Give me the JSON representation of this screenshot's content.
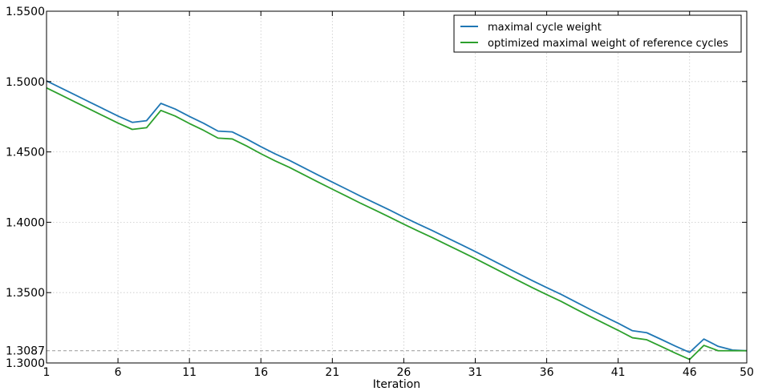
{
  "chart_data": {
    "type": "line",
    "title": "",
    "xlabel": "Iteration",
    "ylabel": "",
    "xlim": [
      1,
      50
    ],
    "ylim": [
      1.3,
      1.55
    ],
    "x_ticks": [
      1,
      6,
      11,
      16,
      21,
      26,
      31,
      36,
      41,
      46,
      50
    ],
    "y_ticks": [
      1.3,
      1.35,
      1.4,
      1.45,
      1.5,
      1.55
    ],
    "y_tick_labels": [
      "1.3000",
      "1.3500",
      "1.4000",
      "1.4500",
      "1.5000",
      "1.5500"
    ],
    "reference_line": {
      "value": 1.3087,
      "label": "1.3087",
      "style": "dashed",
      "color": "#999999"
    },
    "grid": true,
    "legend": "top-right",
    "x": [
      1,
      2,
      3,
      4,
      5,
      6,
      7,
      8,
      9,
      10,
      11,
      12,
      13,
      14,
      15,
      16,
      17,
      18,
      19,
      20,
      21,
      22,
      23,
      24,
      25,
      26,
      27,
      28,
      29,
      30,
      31,
      32,
      33,
      34,
      35,
      36,
      37,
      38,
      39,
      40,
      41,
      42,
      43,
      44,
      45,
      46,
      47,
      48,
      49,
      50
    ],
    "series": [
      {
        "name": "maximal cycle weight",
        "color": "#1f77b4",
        "values": [
          1.5005,
          1.4955,
          1.4905,
          1.4855,
          1.4805,
          1.4755,
          1.471,
          1.4722,
          1.4845,
          1.4805,
          1.4752,
          1.4703,
          1.4648,
          1.4642,
          1.4592,
          1.4537,
          1.4486,
          1.444,
          1.4388,
          1.4336,
          1.4285,
          1.4235,
          1.4184,
          1.4136,
          1.4087,
          1.4036,
          1.3988,
          1.3941,
          1.3891,
          1.3842,
          1.3792,
          1.374,
          1.3688,
          1.3636,
          1.3585,
          1.3536,
          1.3488,
          1.3435,
          1.3383,
          1.3332,
          1.3282,
          1.3229,
          1.3215,
          1.3168,
          1.312,
          1.3075,
          1.317,
          1.3118,
          1.3092,
          1.3087
        ]
      },
      {
        "name": "optimized maximal weight of reference cycles",
        "color": "#2ca02c",
        "values": [
          1.4955,
          1.4905,
          1.4855,
          1.4805,
          1.4755,
          1.4705,
          1.466,
          1.4672,
          1.4795,
          1.4755,
          1.4702,
          1.4653,
          1.4598,
          1.4592,
          1.4542,
          1.4487,
          1.4436,
          1.439,
          1.4338,
          1.4286,
          1.4235,
          1.4185,
          1.4134,
          1.4086,
          1.4037,
          1.3986,
          1.3938,
          1.3891,
          1.3841,
          1.3792,
          1.3742,
          1.369,
          1.3638,
          1.3586,
          1.3535,
          1.3486,
          1.3438,
          1.3385,
          1.3333,
          1.3282,
          1.3232,
          1.3179,
          1.3165,
          1.3118,
          1.307,
          1.3025,
          1.3125,
          1.3087,
          1.3087,
          1.3087
        ]
      }
    ]
  }
}
